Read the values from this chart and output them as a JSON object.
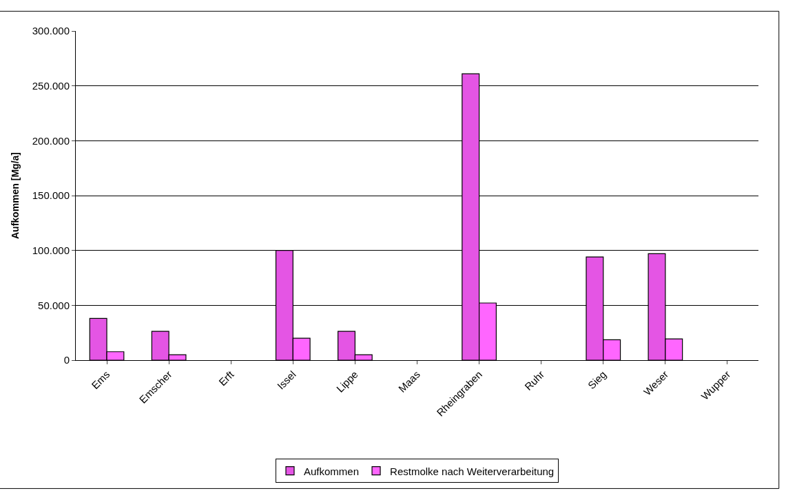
{
  "chart_data": {
    "type": "bar",
    "ylabel": "Aufkommen [Mg/a]",
    "categories": [
      "Ems",
      "Emscher",
      "Erft",
      "Issel",
      "Lippe",
      "Maas",
      "Rheingraben",
      "Ruhr",
      "Sieg",
      "Weser",
      "Wupper"
    ],
    "series": [
      {
        "name": "Aufkommen",
        "color": "#e455e4",
        "values": [
          38000,
          26300,
          null,
          100000,
          26300,
          null,
          261000,
          null,
          94100,
          97000,
          null
        ]
      },
      {
        "name": "Restmolke nach Weiterverarbeitung",
        "color": "#ff66ff",
        "values": [
          7700,
          5000,
          null,
          20000,
          5000,
          null,
          52100,
          null,
          18600,
          19400,
          null
        ]
      }
    ],
    "ylim": [
      0,
      300000
    ],
    "yticks": [
      {
        "value": 0,
        "label": "0"
      },
      {
        "value": 50000,
        "label": "50.000"
      },
      {
        "value": 100000,
        "label": "100.000"
      },
      {
        "value": 150000,
        "label": "150.000"
      },
      {
        "value": 200000,
        "label": "200.000"
      },
      {
        "value": 250000,
        "label": "250.000"
      },
      {
        "value": 300000,
        "label": "300.000"
      }
    ],
    "grid": "y",
    "legend": "bottom"
  }
}
